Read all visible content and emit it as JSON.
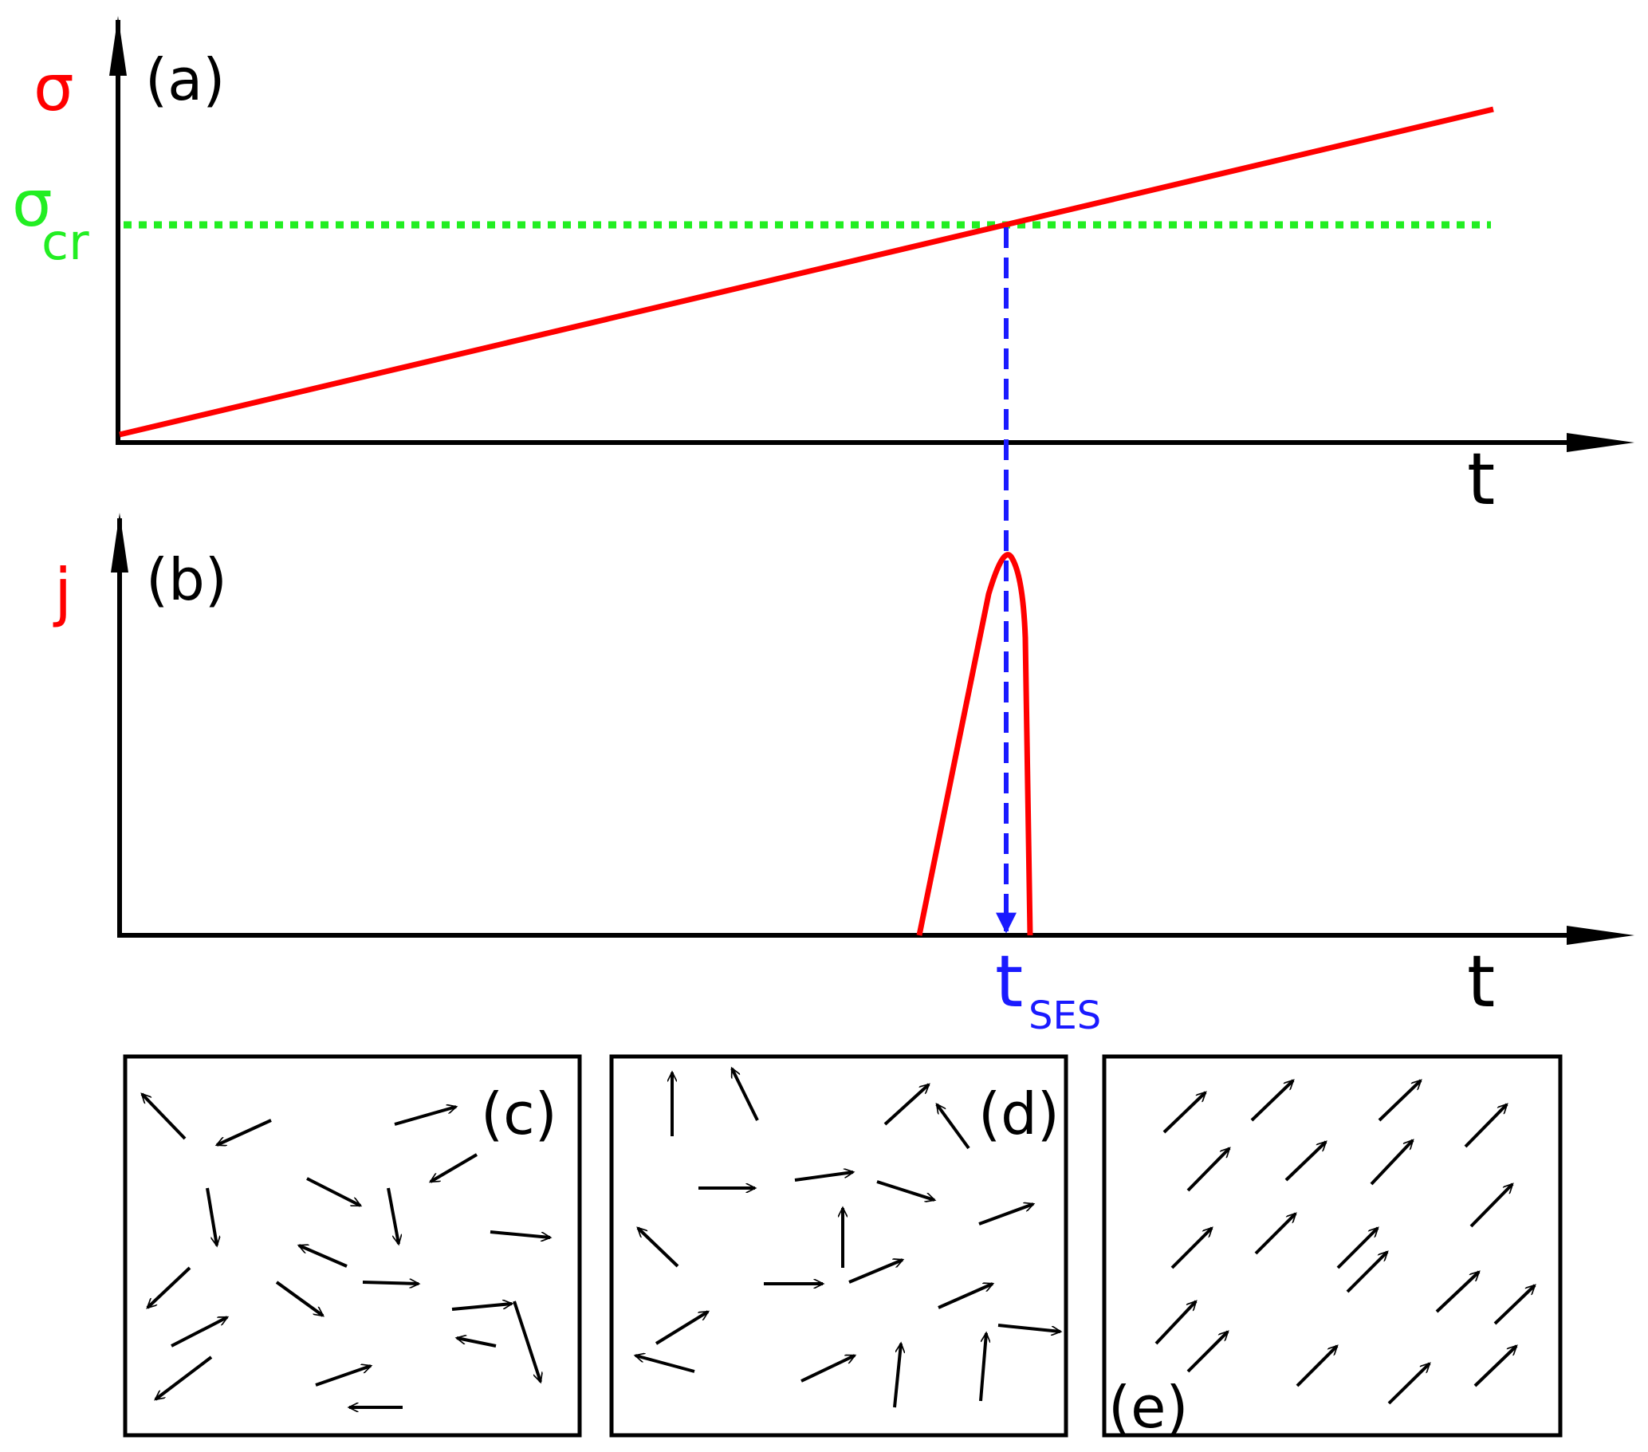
{
  "panel_a": {
    "label": "(a)",
    "y_symbol": "σ",
    "threshold_symbol": "σ",
    "threshold_subscript": "cr",
    "x_symbol": "t"
  },
  "panel_b": {
    "label": "(b)",
    "y_symbol": "j",
    "x_symbol": "t",
    "marker_symbol": "t",
    "marker_subscript": "SES"
  },
  "panel_c": {
    "label": "(c)"
  },
  "panel_d": {
    "label": "(d)"
  },
  "panel_e": {
    "label": "(e)"
  },
  "colors": {
    "curve": "#ff0000",
    "threshold": "#22ee22",
    "marker": "#1a1aff",
    "axes": "#000000"
  }
}
